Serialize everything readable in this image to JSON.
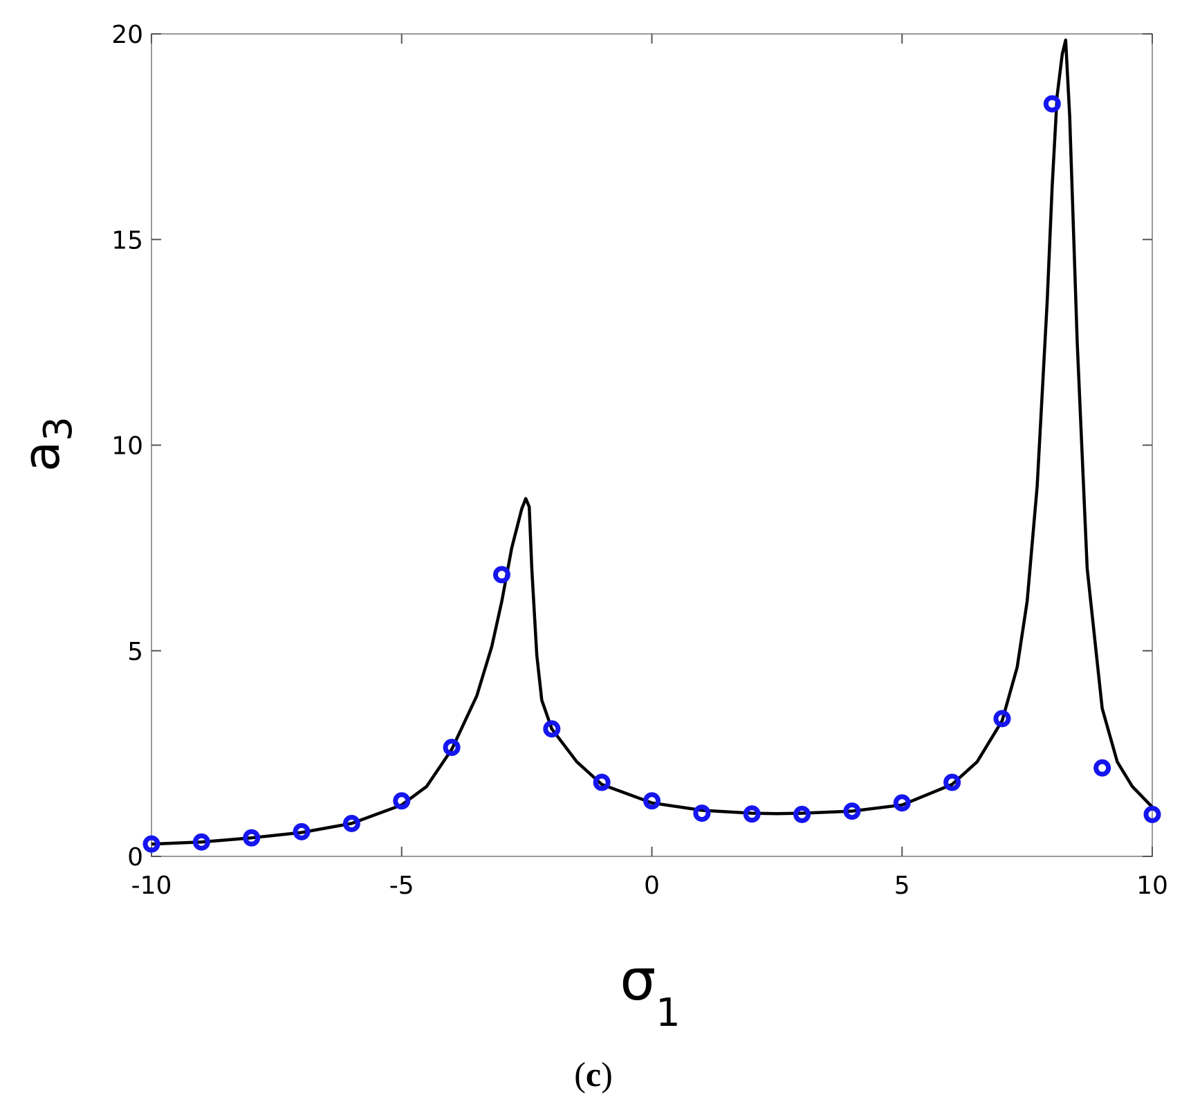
{
  "chart_data": {
    "type": "line",
    "panel_label": {
      "open": "(",
      "letter": "c",
      "close": ")"
    },
    "xlabel": {
      "main": "σ",
      "sub": "1"
    },
    "ylabel": {
      "main": "a",
      "sub": "3"
    },
    "xlim": [
      -10,
      10
    ],
    "ylim": [
      0,
      20
    ],
    "xticks": [
      -10,
      -5,
      0,
      5,
      10
    ],
    "xtick_labels": [
      "-10",
      "-5",
      "0",
      "5",
      "10"
    ],
    "yticks": [
      0,
      5,
      10,
      15,
      20
    ],
    "ytick_labels": [
      "0",
      "5",
      "10",
      "15",
      "20"
    ],
    "grid": false,
    "series": [
      {
        "kind": "line",
        "color": "#000000",
        "x": [
          -10,
          -9,
          -8,
          -7,
          -6,
          -5,
          -4.5,
          -4,
          -3.5,
          -3.2,
          -3,
          -2.8,
          -2.6,
          -2.52,
          -2.45,
          -2.4,
          -2.3,
          -2.2,
          -2,
          -1.5,
          -1,
          0,
          1,
          2,
          2.5,
          3,
          4,
          5,
          6,
          6.5,
          7,
          7.3,
          7.5,
          7.7,
          7.9,
          8.0,
          8.1,
          8.2,
          8.27,
          8.35,
          8.5,
          8.7,
          9,
          9.3,
          9.6,
          10
        ],
        "y": [
          0.3,
          0.35,
          0.45,
          0.58,
          0.8,
          1.25,
          1.7,
          2.6,
          3.9,
          5.1,
          6.2,
          7.5,
          8.45,
          8.7,
          8.5,
          7.0,
          4.9,
          3.8,
          3.1,
          2.3,
          1.75,
          1.3,
          1.12,
          1.05,
          1.04,
          1.05,
          1.1,
          1.25,
          1.75,
          2.3,
          3.3,
          4.6,
          6.2,
          9.0,
          13.5,
          16.3,
          18.5,
          19.5,
          19.85,
          18.0,
          12.5,
          7.0,
          3.6,
          2.3,
          1.7,
          1.2
        ]
      },
      {
        "kind": "markers",
        "marker": "o",
        "color": "#1515ee",
        "x": [
          -10,
          -9,
          -8,
          -7,
          -6,
          -5,
          -4,
          -3,
          -2,
          -1,
          0,
          1,
          2,
          3,
          4,
          5,
          6,
          7,
          8,
          9,
          10
        ],
        "y": [
          0.3,
          0.35,
          0.45,
          0.6,
          0.8,
          1.35,
          2.65,
          6.85,
          3.1,
          1.8,
          1.35,
          1.05,
          1.03,
          1.02,
          1.1,
          1.3,
          1.8,
          3.35,
          18.3,
          2.15,
          1.02
        ]
      }
    ]
  }
}
